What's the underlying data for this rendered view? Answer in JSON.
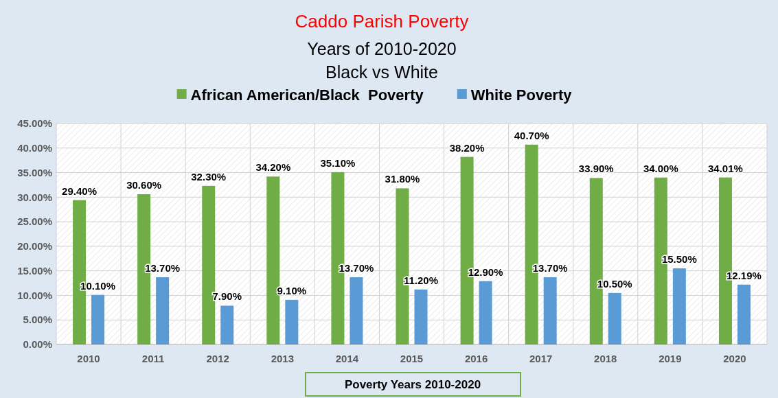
{
  "chart_data": {
    "type": "bar",
    "title": "Caddo Parish Poverty",
    "subtitle": "Years of 2010-2020\nBlack vs White",
    "xlabel": "Poverty Years 2010-2020",
    "categories": [
      "2010",
      "2011",
      "2012",
      "2013",
      "2014",
      "2015",
      "2016",
      "2017",
      "2018",
      "2019",
      "2020"
    ],
    "series": [
      {
        "name": "African American/Black  Poverty",
        "color": "#70ad47",
        "values": [
          29.4,
          30.6,
          32.3,
          34.2,
          35.1,
          31.8,
          38.2,
          40.7,
          33.9,
          34.0,
          34.01
        ],
        "value_labels": [
          "29.40%",
          "30.60%",
          "32.30%",
          "34.20%",
          "35.10%",
          "31.80%",
          "38.20%",
          "40.70%",
          "33.90%",
          "34.00%",
          "34.01%"
        ]
      },
      {
        "name": "White Poverty",
        "color": "#5b9bd5",
        "values": [
          10.1,
          13.7,
          7.9,
          9.1,
          13.7,
          11.2,
          12.9,
          13.7,
          10.5,
          15.5,
          12.19
        ],
        "value_labels": [
          "10.10%",
          "13.70%",
          "7.90%",
          "9.10%",
          "13.70%",
          "11.20%",
          "12.90%",
          "13.70%",
          "10.50%",
          "15.50%",
          "12.19%"
        ]
      }
    ],
    "ylim": [
      0,
      45
    ],
    "yticks": [
      {
        "value": 0,
        "label": "0.00%"
      },
      {
        "value": 5,
        "label": "5.00%"
      },
      {
        "value": 10,
        "label": "10.00%"
      },
      {
        "value": 15,
        "label": "15.00%"
      },
      {
        "value": 20,
        "label": "20.00%"
      },
      {
        "value": 25,
        "label": "25.00%"
      },
      {
        "value": 30,
        "label": "30.00%"
      },
      {
        "value": 35,
        "label": "35.00%"
      },
      {
        "value": 40,
        "label": "40.00%"
      },
      {
        "value": 45,
        "label": "45.00%"
      }
    ],
    "grid": true,
    "legend": "top"
  }
}
